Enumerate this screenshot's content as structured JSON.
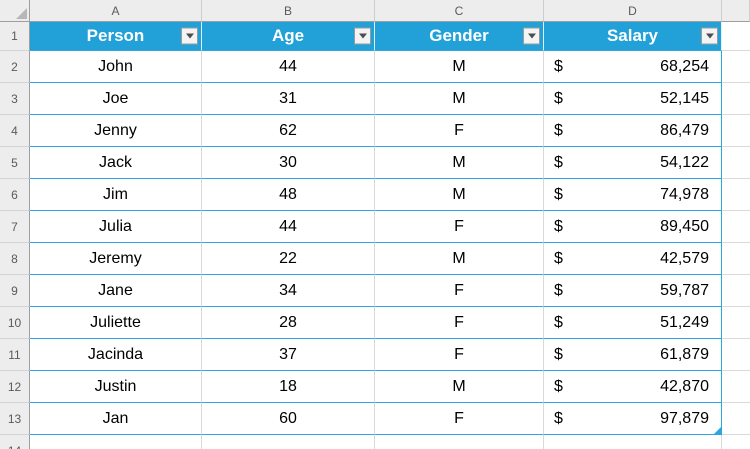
{
  "sheet": {
    "column_letters": [
      "A",
      "B",
      "C",
      "D",
      ""
    ],
    "row_numbers": [
      "1",
      "2",
      "3",
      "4",
      "5",
      "6",
      "7",
      "8",
      "9",
      "10",
      "11",
      "12",
      "13",
      "14"
    ],
    "colors": {
      "table_header_bg": "#21a1d8",
      "table_row_border": "#2ba7dd",
      "sheet_gridline": "#d9d9d9",
      "header_strip_bg": "#ededed",
      "header_strip_text": "#5a5a5a",
      "data_text": "#000000",
      "header_text": "#ffffff"
    }
  },
  "table": {
    "headers": [
      {
        "label": "Person"
      },
      {
        "label": "Age"
      },
      {
        "label": "Gender"
      },
      {
        "label": "Salary"
      }
    ],
    "currency_symbol": "$",
    "rows": [
      {
        "person": "John",
        "age": "44",
        "gender": "M",
        "salary": "68,254"
      },
      {
        "person": "Joe",
        "age": "31",
        "gender": "M",
        "salary": "52,145"
      },
      {
        "person": "Jenny",
        "age": "62",
        "gender": "F",
        "salary": "86,479"
      },
      {
        "person": "Jack",
        "age": "30",
        "gender": "M",
        "salary": "54,122"
      },
      {
        "person": "Jim",
        "age": "48",
        "gender": "M",
        "salary": "74,978"
      },
      {
        "person": "Julia",
        "age": "44",
        "gender": "F",
        "salary": "89,450"
      },
      {
        "person": "Jeremy",
        "age": "22",
        "gender": "M",
        "salary": "42,579"
      },
      {
        "person": "Jane",
        "age": "34",
        "gender": "F",
        "salary": "59,787"
      },
      {
        "person": "Juliette",
        "age": "28",
        "gender": "F",
        "salary": "51,249"
      },
      {
        "person": "Jacinda",
        "age": "37",
        "gender": "F",
        "salary": "61,879"
      },
      {
        "person": "Justin",
        "age": "18",
        "gender": "M",
        "salary": "42,870"
      },
      {
        "person": "Jan",
        "age": "60",
        "gender": "F",
        "salary": "97,879"
      }
    ]
  }
}
